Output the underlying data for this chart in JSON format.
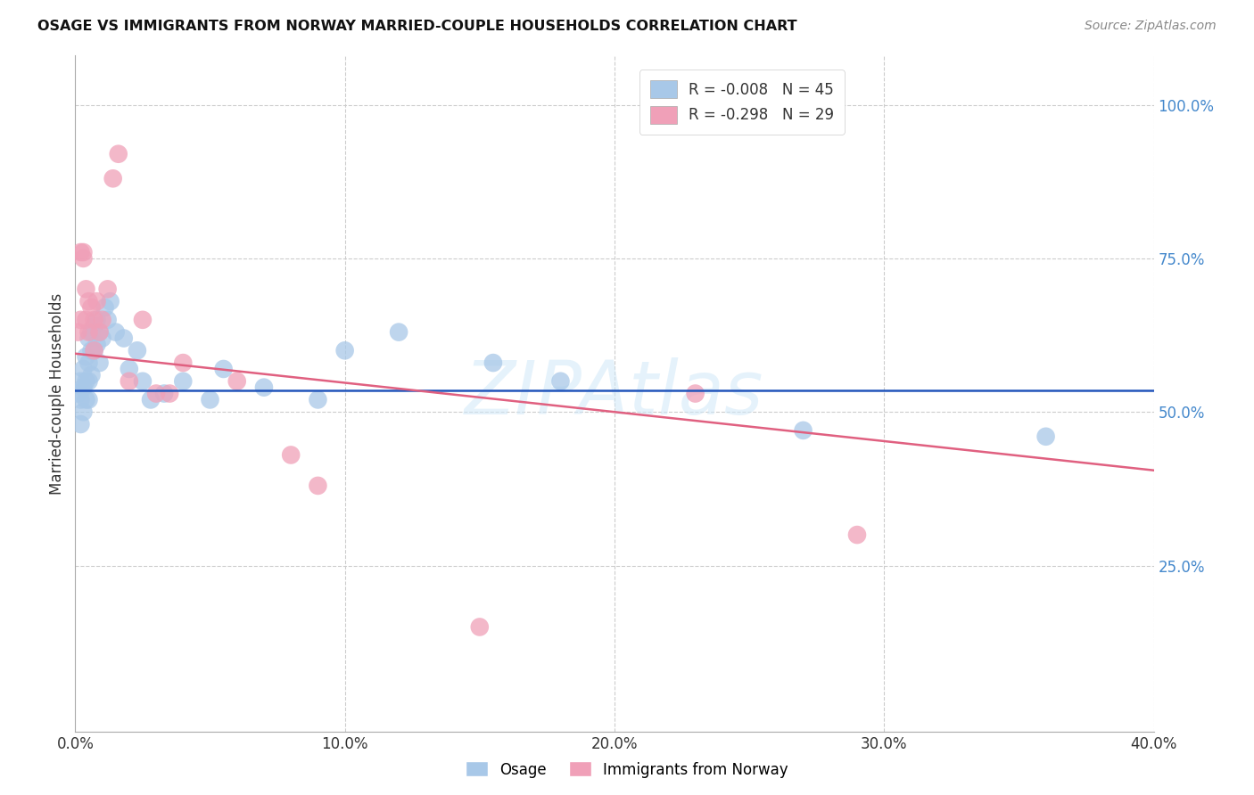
{
  "title": "OSAGE VS IMMIGRANTS FROM NORWAY MARRIED-COUPLE HOUSEHOLDS CORRELATION CHART",
  "source": "Source: ZipAtlas.com",
  "ylabel": "Married-couple Households",
  "xlim": [
    0.0,
    0.4
  ],
  "ylim": [
    -0.02,
    1.08
  ],
  "yticks": [
    0.25,
    0.5,
    0.75,
    1.0
  ],
  "ytick_labels": [
    "25.0%",
    "50.0%",
    "75.0%",
    "100.0%"
  ],
  "xticks": [
    0.0,
    0.1,
    0.2,
    0.3,
    0.4
  ],
  "xtick_labels": [
    "0.0%",
    "10.0%",
    "20.0%",
    "30.0%",
    "40.0%"
  ],
  "osage_R": -0.008,
  "osage_N": 45,
  "norway_R": -0.298,
  "norway_N": 29,
  "osage_color": "#a8c8e8",
  "norway_color": "#f0a0b8",
  "osage_line_color": "#2255bb",
  "norway_line_color": "#e06080",
  "watermark": "ZIPAtlas",
  "osage_line_y0": 0.535,
  "osage_line_y1": 0.535,
  "norway_line_y0": 0.595,
  "norway_line_y1": 0.405,
  "osage_x": [
    0.001,
    0.002,
    0.002,
    0.002,
    0.003,
    0.003,
    0.003,
    0.004,
    0.004,
    0.004,
    0.005,
    0.005,
    0.005,
    0.005,
    0.006,
    0.006,
    0.006,
    0.007,
    0.007,
    0.008,
    0.008,
    0.009,
    0.009,
    0.01,
    0.011,
    0.012,
    0.013,
    0.015,
    0.018,
    0.02,
    0.023,
    0.025,
    0.028,
    0.033,
    0.04,
    0.05,
    0.055,
    0.07,
    0.09,
    0.1,
    0.12,
    0.155,
    0.18,
    0.27,
    0.36
  ],
  "osage_y": [
    0.53,
    0.55,
    0.52,
    0.48,
    0.57,
    0.54,
    0.5,
    0.59,
    0.55,
    0.52,
    0.62,
    0.58,
    0.55,
    0.52,
    0.63,
    0.6,
    0.56,
    0.64,
    0.6,
    0.65,
    0.61,
    0.63,
    0.58,
    0.62,
    0.67,
    0.65,
    0.68,
    0.63,
    0.62,
    0.57,
    0.6,
    0.55,
    0.52,
    0.53,
    0.55,
    0.52,
    0.57,
    0.54,
    0.52,
    0.6,
    0.63,
    0.58,
    0.55,
    0.47,
    0.46
  ],
  "norway_x": [
    0.001,
    0.002,
    0.002,
    0.003,
    0.003,
    0.004,
    0.004,
    0.005,
    0.005,
    0.006,
    0.007,
    0.007,
    0.008,
    0.009,
    0.01,
    0.012,
    0.014,
    0.016,
    0.02,
    0.025,
    0.03,
    0.035,
    0.04,
    0.06,
    0.08,
    0.09,
    0.15,
    0.23,
    0.29
  ],
  "norway_y": [
    0.63,
    0.65,
    0.76,
    0.75,
    0.76,
    0.7,
    0.65,
    0.68,
    0.63,
    0.67,
    0.65,
    0.6,
    0.68,
    0.63,
    0.65,
    0.7,
    0.88,
    0.92,
    0.55,
    0.65,
    0.53,
    0.53,
    0.58,
    0.55,
    0.43,
    0.38,
    0.15,
    0.53,
    0.3
  ]
}
